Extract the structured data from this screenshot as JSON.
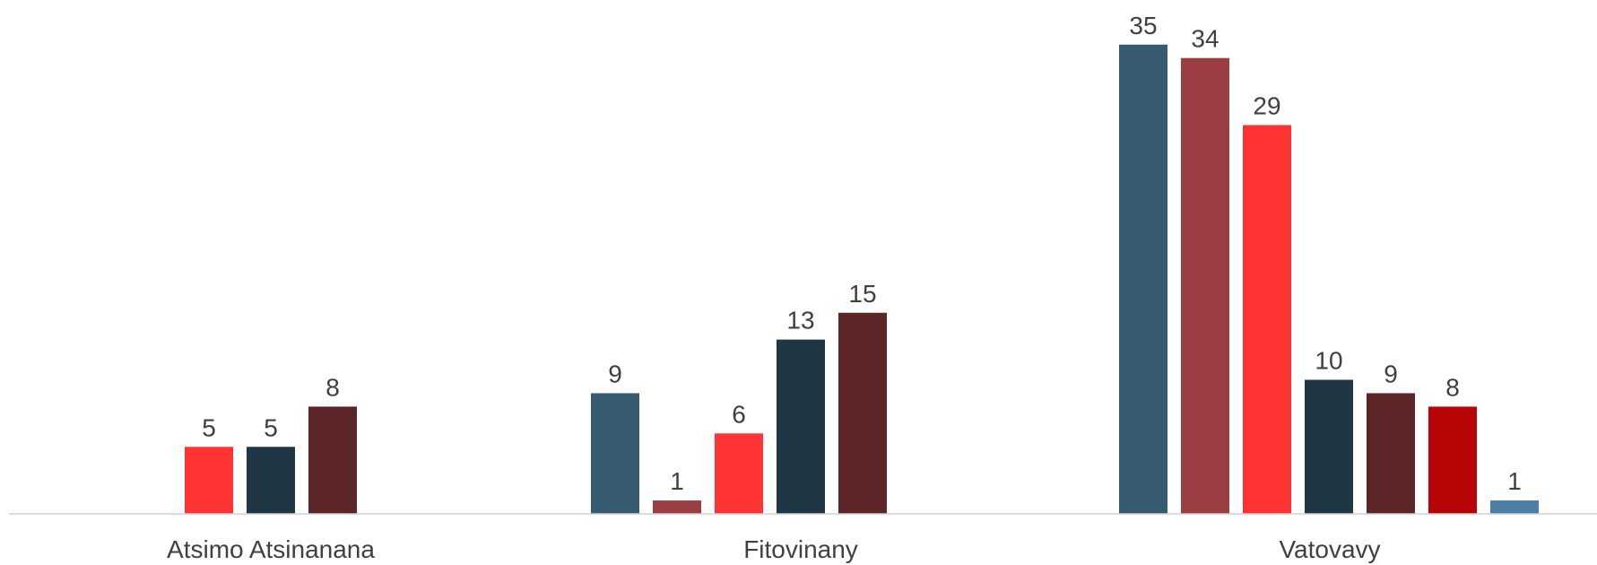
{
  "chart_data": {
    "type": "bar",
    "categories": [
      "Atsimo Atsinanana",
      "Fitovinany",
      "Vatovavy"
    ],
    "ylim": [
      0,
      35
    ],
    "grid": false,
    "legend": "none",
    "groups": [
      {
        "category": "Atsimo Atsinanana",
        "bars": [
          {
            "value": 5,
            "color": "#FF3333"
          },
          {
            "value": 5,
            "color": "#203644"
          },
          {
            "value": 8,
            "color": "#5C2528"
          }
        ]
      },
      {
        "category": "Fitovinany",
        "bars": [
          {
            "value": 9,
            "color": "#365A70"
          },
          {
            "value": 1,
            "color": "#9A3E44"
          },
          {
            "value": 6,
            "color": "#FF3333"
          },
          {
            "value": 13,
            "color": "#203644"
          },
          {
            "value": 15,
            "color": "#5C2528"
          }
        ]
      },
      {
        "category": "Vatovavy",
        "bars": [
          {
            "value": 35,
            "color": "#365A70"
          },
          {
            "value": 34,
            "color": "#9A3E44"
          },
          {
            "value": 29,
            "color": "#FF3333"
          },
          {
            "value": 10,
            "color": "#203644"
          },
          {
            "value": 9,
            "color": "#5C2528"
          },
          {
            "value": 8,
            "color": "#B80406"
          },
          {
            "value": 1,
            "color": "#4C7EA6"
          }
        ]
      }
    ]
  }
}
